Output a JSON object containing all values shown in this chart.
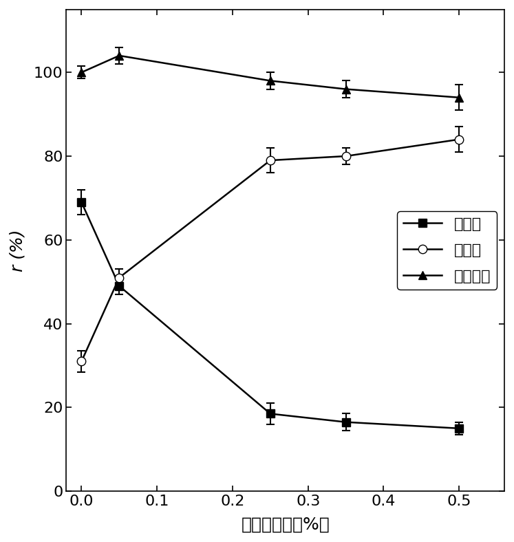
{
  "x": [
    0.0,
    0.05,
    0.25,
    0.35,
    0.5
  ],
  "series1_label": "贴壁率",
  "series1_y": [
    69,
    49,
    18.5,
    16.5,
    15
  ],
  "series1_yerr": [
    3,
    2,
    2.5,
    2,
    1.5
  ],
  "series2_label": "悬浮率",
  "series2_y": [
    31,
    51,
    79,
    80,
    84
  ],
  "series2_yerr": [
    2.5,
    2,
    3,
    2,
    3
  ],
  "series3_label": "总生长率",
  "series3_y": [
    100,
    104,
    98,
    96,
    94
  ],
  "series3_yerr": [
    1.5,
    2,
    2,
    2,
    3
  ],
  "xlabel": "黄原胶浓度（%）",
  "ylabel": "r (%)",
  "xlim": [
    -0.02,
    0.56
  ],
  "ylim": [
    0,
    115
  ],
  "yticks": [
    0,
    20,
    40,
    60,
    80,
    100
  ],
  "xticks": [
    0.0,
    0.1,
    0.2,
    0.3,
    0.4,
    0.5
  ],
  "color": "#000000",
  "background": "#ffffff"
}
